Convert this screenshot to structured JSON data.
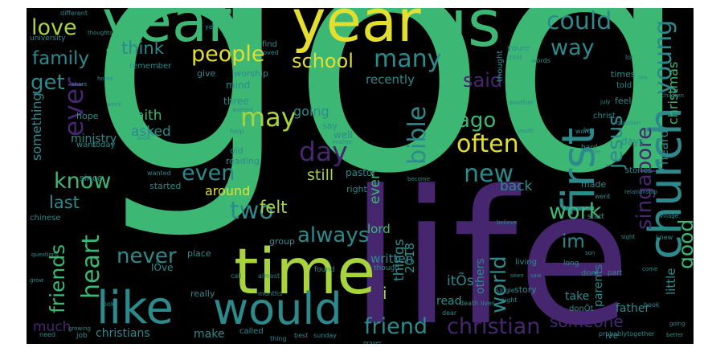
{
  "palette": {
    "background": "#000000",
    "purple": "#46266e",
    "indigo": "#3b3e8a",
    "teal": "#2d8a8c",
    "green": "#3cb874",
    "lime": "#a7d43c",
    "yellow": "#e4df2e"
  },
  "words": [
    {
      "text": "god",
      "color": "green",
      "size": "xl"
    },
    {
      "text": "life",
      "color": "purple",
      "size": "xl"
    },
    {
      "text": "time",
      "color": "lime",
      "size": "l"
    },
    {
      "text": "years",
      "color": "green",
      "size": "l"
    },
    {
      "text": "year",
      "color": "yellow",
      "size": "l"
    },
    {
      "text": "us",
      "color": "green",
      "size": "l"
    },
    {
      "text": "church",
      "color": "teal",
      "size": "l"
    },
    {
      "text": "first",
      "color": "teal",
      "size": "l"
    },
    {
      "text": "like",
      "color": "teal",
      "size": "l"
    },
    {
      "text": "would",
      "color": "teal",
      "size": "l"
    },
    {
      "text": "people",
      "color": "yellow",
      "size": "m"
    },
    {
      "text": "school",
      "color": "yellow",
      "size": "m"
    },
    {
      "text": "christian",
      "color": "purple",
      "size": "m"
    },
    {
      "text": "friend",
      "color": "teal",
      "size": "m"
    },
    {
      "text": "love",
      "color": "lime",
      "size": "m"
    },
    {
      "text": "family",
      "color": "teal",
      "size": "m"
    },
    {
      "text": "could",
      "color": "teal",
      "size": "m"
    },
    {
      "text": "many",
      "color": "teal",
      "size": "m"
    },
    {
      "text": "ever",
      "color": "purple",
      "size": "m"
    },
    {
      "text": "day",
      "color": "purple",
      "size": "m"
    },
    {
      "text": "young",
      "color": "teal",
      "size": "m"
    },
    {
      "text": "singapore",
      "color": "purple",
      "size": "m"
    },
    {
      "text": "jesus",
      "color": "teal",
      "size": "m"
    },
    {
      "text": "always",
      "color": "teal",
      "size": "m"
    },
    {
      "text": "never",
      "color": "teal",
      "size": "m"
    },
    {
      "text": "often",
      "color": "yellow",
      "size": "m"
    },
    {
      "text": "heart",
      "color": "green",
      "size": "m"
    },
    {
      "text": "know",
      "color": "green",
      "size": "m"
    },
    {
      "text": "bible",
      "color": "teal",
      "size": "m"
    },
    {
      "text": "friends",
      "color": "green",
      "size": "m"
    },
    {
      "text": "may",
      "color": "lime",
      "size": "m"
    },
    {
      "text": "work",
      "color": "green",
      "size": "m"
    },
    {
      "text": "good",
      "color": "green",
      "size": "m"
    },
    {
      "text": "two",
      "color": "teal",
      "size": "m"
    },
    {
      "text": "even",
      "color": "teal",
      "size": "m"
    },
    {
      "text": "world",
      "color": "teal",
      "size": "m"
    },
    {
      "text": "new",
      "color": "teal",
      "size": "m"
    },
    {
      "text": "ago",
      "color": "green",
      "size": "m"
    },
    {
      "text": "get",
      "color": "teal",
      "size": "m"
    },
    {
      "text": "said",
      "color": "purple",
      "size": "m"
    },
    {
      "text": "way",
      "color": "teal",
      "size": "m"
    },
    {
      "text": "think",
      "color": "teal",
      "size": "s"
    },
    {
      "text": "last",
      "color": "teal",
      "size": "s"
    },
    {
      "text": "im",
      "color": "teal",
      "size": "s"
    },
    {
      "text": "someone",
      "color": "purple",
      "size": "s"
    },
    {
      "text": "christmas",
      "color": "green",
      "size": "s"
    },
    {
      "text": "things",
      "color": "teal",
      "size": "s"
    },
    {
      "text": "faith",
      "color": "green",
      "size": "s"
    },
    {
      "text": "asked",
      "color": "teal",
      "size": "s"
    },
    {
      "text": "recently",
      "color": "teal",
      "size": "s"
    },
    {
      "text": "something",
      "color": "teal",
      "size": "s"
    },
    {
      "text": "felt",
      "color": "lime",
      "size": "s"
    },
    {
      "text": "still",
      "color": "lime",
      "size": "s"
    },
    {
      "text": "going",
      "color": "teal",
      "size": "s"
    },
    {
      "text": "around",
      "color": "yellow",
      "size": "s"
    },
    {
      "text": "every",
      "color": "green",
      "size": "s"
    },
    {
      "text": "much",
      "color": "purple",
      "size": "s"
    },
    {
      "text": "christians",
      "color": "teal",
      "size": "s"
    },
    {
      "text": "i",
      "color": "lime",
      "size": "s"
    },
    {
      "text": "2018",
      "color": "teal",
      "size": "s"
    },
    {
      "text": "itÕs",
      "color": "teal",
      "size": "s"
    },
    {
      "text": "lord",
      "color": "green",
      "size": "s"
    },
    {
      "text": "written",
      "color": "teal",
      "size": "s"
    },
    {
      "text": "little",
      "color": "teal",
      "size": "s"
    },
    {
      "text": "heard",
      "color": "teal",
      "size": "s"
    },
    {
      "text": "back",
      "color": "teal",
      "size": "s"
    },
    {
      "text": "others",
      "color": "teal",
      "size": "s"
    },
    {
      "text": "read",
      "color": "teal",
      "size": "s"
    },
    {
      "text": "make",
      "color": "teal",
      "size": "s"
    },
    {
      "text": "parents",
      "color": "teal",
      "size": "s"
    },
    {
      "text": "father",
      "color": "teal",
      "size": "s"
    },
    {
      "text": "take",
      "color": "teal",
      "size": "s"
    },
    {
      "text": "ministry",
      "color": "teal",
      "size": "s"
    },
    {
      "text": "hope",
      "color": "teal",
      "size": "xs"
    },
    {
      "text": "three",
      "color": "teal",
      "size": "xs"
    },
    {
      "text": "mind",
      "color": "teal",
      "size": "xs"
    },
    {
      "text": "pastor",
      "color": "teal",
      "size": "xs"
    },
    {
      "text": "well",
      "color": "teal",
      "size": "xs"
    },
    {
      "text": "say",
      "color": "teal",
      "size": "xs"
    },
    {
      "text": "right",
      "color": "teal",
      "size": "xs"
    },
    {
      "text": "made",
      "color": "teal",
      "size": "xs"
    },
    {
      "text": "days",
      "color": "teal",
      "size": "xs"
    },
    {
      "text": "feel",
      "color": "teal",
      "size": "xs"
    },
    {
      "text": "told",
      "color": "teal",
      "size": "xs"
    },
    {
      "text": "times",
      "color": "teal",
      "size": "xs"
    },
    {
      "text": "stories",
      "color": "teal",
      "size": "xs"
    },
    {
      "text": "story",
      "color": "teal",
      "size": "xs"
    },
    {
      "text": "group",
      "color": "teal",
      "size": "xs"
    },
    {
      "text": "place",
      "color": "teal",
      "size": "xs"
    },
    {
      "text": "really",
      "color": "teal",
      "size": "xs"
    },
    {
      "text": "since",
      "color": "teal",
      "size": "xs"
    },
    {
      "text": "old",
      "color": "teal",
      "size": "xs"
    },
    {
      "text": "reading",
      "color": "teal",
      "size": "xs"
    },
    {
      "text": "started",
      "color": "teal",
      "size": "xs"
    },
    {
      "text": "give",
      "color": "teal",
      "size": "xs"
    },
    {
      "text": "worship",
      "color": "teal",
      "size": "xs"
    },
    {
      "text": "remember",
      "color": "teal",
      "size": "xs"
    },
    {
      "text": "university",
      "color": "teal",
      "size": "xs"
    },
    {
      "text": "different",
      "color": "teal",
      "size": "xs"
    },
    {
      "text": "find",
      "color": "teal",
      "size": "xs"
    },
    {
      "text": "youre",
      "color": "teal",
      "size": "xs"
    },
    {
      "text": "thought",
      "color": "teal",
      "size": "xs"
    },
    {
      "text": "christ",
      "color": "teal",
      "size": "xs"
    },
    {
      "text": "ive",
      "color": "teal",
      "size": "xs"
    },
    {
      "text": "IÕve",
      "color": "teal",
      "size": "xs"
    },
    {
      "text": "donÕt",
      "color": "teal",
      "size": "xs"
    },
    {
      "text": "called",
      "color": "teal",
      "size": "xs"
    },
    {
      "text": "job",
      "color": "teal",
      "size": "xs"
    },
    {
      "text": "need",
      "color": "teal",
      "size": "xs"
    },
    {
      "text": "chinese",
      "color": "teal",
      "size": "xs"
    },
    {
      "text": "want",
      "color": "teal",
      "size": "xs"
    },
    {
      "text": "today",
      "color": "teal",
      "size": "xs"
    },
    {
      "text": "living",
      "color": "teal",
      "size": "xs"
    },
    {
      "text": "found",
      "color": "teal",
      "size": "xs"
    },
    {
      "text": "though",
      "color": "teal",
      "size": "xs"
    },
    {
      "text": "dont",
      "color": "teal",
      "size": "xs"
    },
    {
      "text": "part",
      "color": "teal",
      "size": "xs"
    },
    {
      "text": "long",
      "color": "teal",
      "size": "xs"
    },
    {
      "text": "start",
      "color": "teal",
      "size": "xs"
    },
    {
      "text": "hard",
      "color": "teal",
      "size": "xs"
    },
    {
      "text": "went",
      "color": "teal",
      "size": "xs"
    },
    {
      "text": "lot",
      "color": "teal",
      "size": "xs"
    },
    {
      "text": "yet",
      "color": "teal",
      "size": "xs"
    },
    {
      "text": "loved",
      "color": "teal",
      "size": "xs"
    },
    {
      "text": "words",
      "color": "teal",
      "size": "xs"
    },
    {
      "text": "child",
      "color": "teal",
      "size": "xs"
    },
    {
      "text": "another",
      "color": "teal",
      "size": "xs"
    },
    {
      "text": "look",
      "color": "teal",
      "size": "xs"
    },
    {
      "text": "help",
      "color": "teal",
      "size": "xs"
    },
    {
      "text": "death",
      "color": "teal",
      "size": "xs"
    },
    {
      "text": "lives",
      "color": "teal",
      "size": "xs"
    },
    {
      "text": "dear",
      "color": "teal",
      "size": "xs"
    },
    {
      "text": "single",
      "color": "teal",
      "size": "xs"
    },
    {
      "text": "night",
      "color": "teal",
      "size": "xs"
    },
    {
      "text": "book",
      "color": "teal",
      "size": "xs"
    },
    {
      "text": "word",
      "color": "teal",
      "size": "xs"
    },
    {
      "text": "knew",
      "color": "teal",
      "size": "xs"
    },
    {
      "text": "sunday",
      "color": "teal",
      "size": "xs"
    },
    {
      "text": "best",
      "color": "teal",
      "size": "xs"
    },
    {
      "text": "thing",
      "color": "teal",
      "size": "xs"
    },
    {
      "text": "months",
      "color": "teal",
      "size": "xs"
    },
    {
      "text": "almost",
      "color": "teal",
      "size": "xs"
    },
    {
      "text": "took",
      "color": "teal",
      "size": "xs"
    },
    {
      "text": "call",
      "color": "teal",
      "size": "xs"
    },
    {
      "text": "wanted",
      "color": "teal",
      "size": "xs"
    },
    {
      "text": "mother",
      "color": "teal",
      "size": "xs"
    },
    {
      "text": "ive",
      "color": "teal",
      "size": "xs"
    },
    {
      "text": "prayer",
      "color": "teal",
      "size": "xs"
    },
    {
      "text": "probablytogether",
      "color": "teal",
      "size": "xs"
    },
    {
      "text": "better",
      "color": "teal",
      "size": "xs"
    },
    {
      "text": "going",
      "color": "teal",
      "size": "xs"
    },
    {
      "text": "come",
      "color": "teal",
      "size": "xs"
    },
    {
      "text": "relationship",
      "color": "teal",
      "size": "xs"
    },
    {
      "text": "life",
      "color": "teal",
      "size": "xs"
    },
    {
      "text": "question",
      "color": "teal",
      "size": "xs"
    },
    {
      "text": "believe",
      "color": "teal",
      "size": "xs"
    },
    {
      "text": "children",
      "color": "teal",
      "size": "xs"
    },
    {
      "text": "become",
      "color": "teal",
      "size": "xs"
    },
    {
      "text": "youth",
      "color": "teal",
      "size": "xs"
    },
    {
      "text": "week",
      "color": "teal",
      "size": "xs"
    },
    {
      "text": "share",
      "color": "teal",
      "size": "xs"
    },
    {
      "text": "thoughts",
      "color": "teal",
      "size": "xs"
    },
    {
      "text": "home",
      "color": "teal",
      "size": "xs"
    },
    {
      "text": "sight",
      "color": "teal",
      "size": "xs"
    },
    {
      "text": "village",
      "color": "teal",
      "size": "xs"
    },
    {
      "text": "july",
      "color": "teal",
      "size": "xs"
    },
    {
      "text": "live",
      "color": "teal",
      "size": "xs"
    },
    {
      "text": "son",
      "color": "teal",
      "size": "xs"
    },
    {
      "text": "questions",
      "color": "teal",
      "size": "xs"
    },
    {
      "text": "grow",
      "color": "teal",
      "size": "xs"
    },
    {
      "text": "growing",
      "color": "teal",
      "size": "xs"
    },
    {
      "text": "seen",
      "color": "teal",
      "size": "xs"
    },
    {
      "text": "saw",
      "color": "teal",
      "size": "xs"
    },
    {
      "text": "wanted",
      "color": "teal",
      "size": "xs"
    }
  ]
}
